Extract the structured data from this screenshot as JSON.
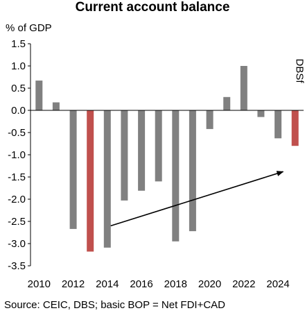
{
  "chart_data": {
    "type": "bar",
    "title": "Current account balance",
    "ylabel": "% of GDP",
    "source": "Source: CEIC, DBS; basic BOP = Net FDI+CAD",
    "ylim": [
      -3.5,
      1.5
    ],
    "yticks": [
      "1.5",
      "1.0",
      "0.5",
      "0.0",
      "-0.5",
      "-1.0",
      "-1.5",
      "-2.0",
      "-2.5",
      "-3.0",
      "-3.5"
    ],
    "ytick_values": [
      1.5,
      1.0,
      0.5,
      0.0,
      -0.5,
      -1.0,
      -1.5,
      -2.0,
      -2.5,
      -3.0,
      -3.5
    ],
    "x": [
      2010,
      2011,
      2012,
      2013,
      2014,
      2015,
      2016,
      2017,
      2018,
      2019,
      2020,
      2021,
      2022,
      2023,
      2024,
      2025
    ],
    "xtick_labels": [
      "2010",
      "2012",
      "2014",
      "2016",
      "2018",
      "2020",
      "2022",
      "2024"
    ],
    "xtick_values": [
      2010,
      2012,
      2014,
      2016,
      2018,
      2020,
      2022,
      2024
    ],
    "values": [
      0.67,
      0.18,
      -2.67,
      -3.18,
      -3.09,
      -2.03,
      -1.81,
      -1.6,
      -2.95,
      -2.72,
      -0.42,
      0.3,
      1.0,
      -0.15,
      -0.63,
      -0.8
    ],
    "highlight_years": [
      2013,
      2025
    ],
    "colors": {
      "bar": "#808080",
      "highlight": "#c0504d",
      "axis": "#000000",
      "arrow": "#000000"
    },
    "annotations": {
      "forecast_label": "DBSf"
    },
    "arrow": {
      "from": [
        2014.2,
        -2.6
      ],
      "to": [
        2024.3,
        -1.38
      ]
    },
    "grid": false
  }
}
